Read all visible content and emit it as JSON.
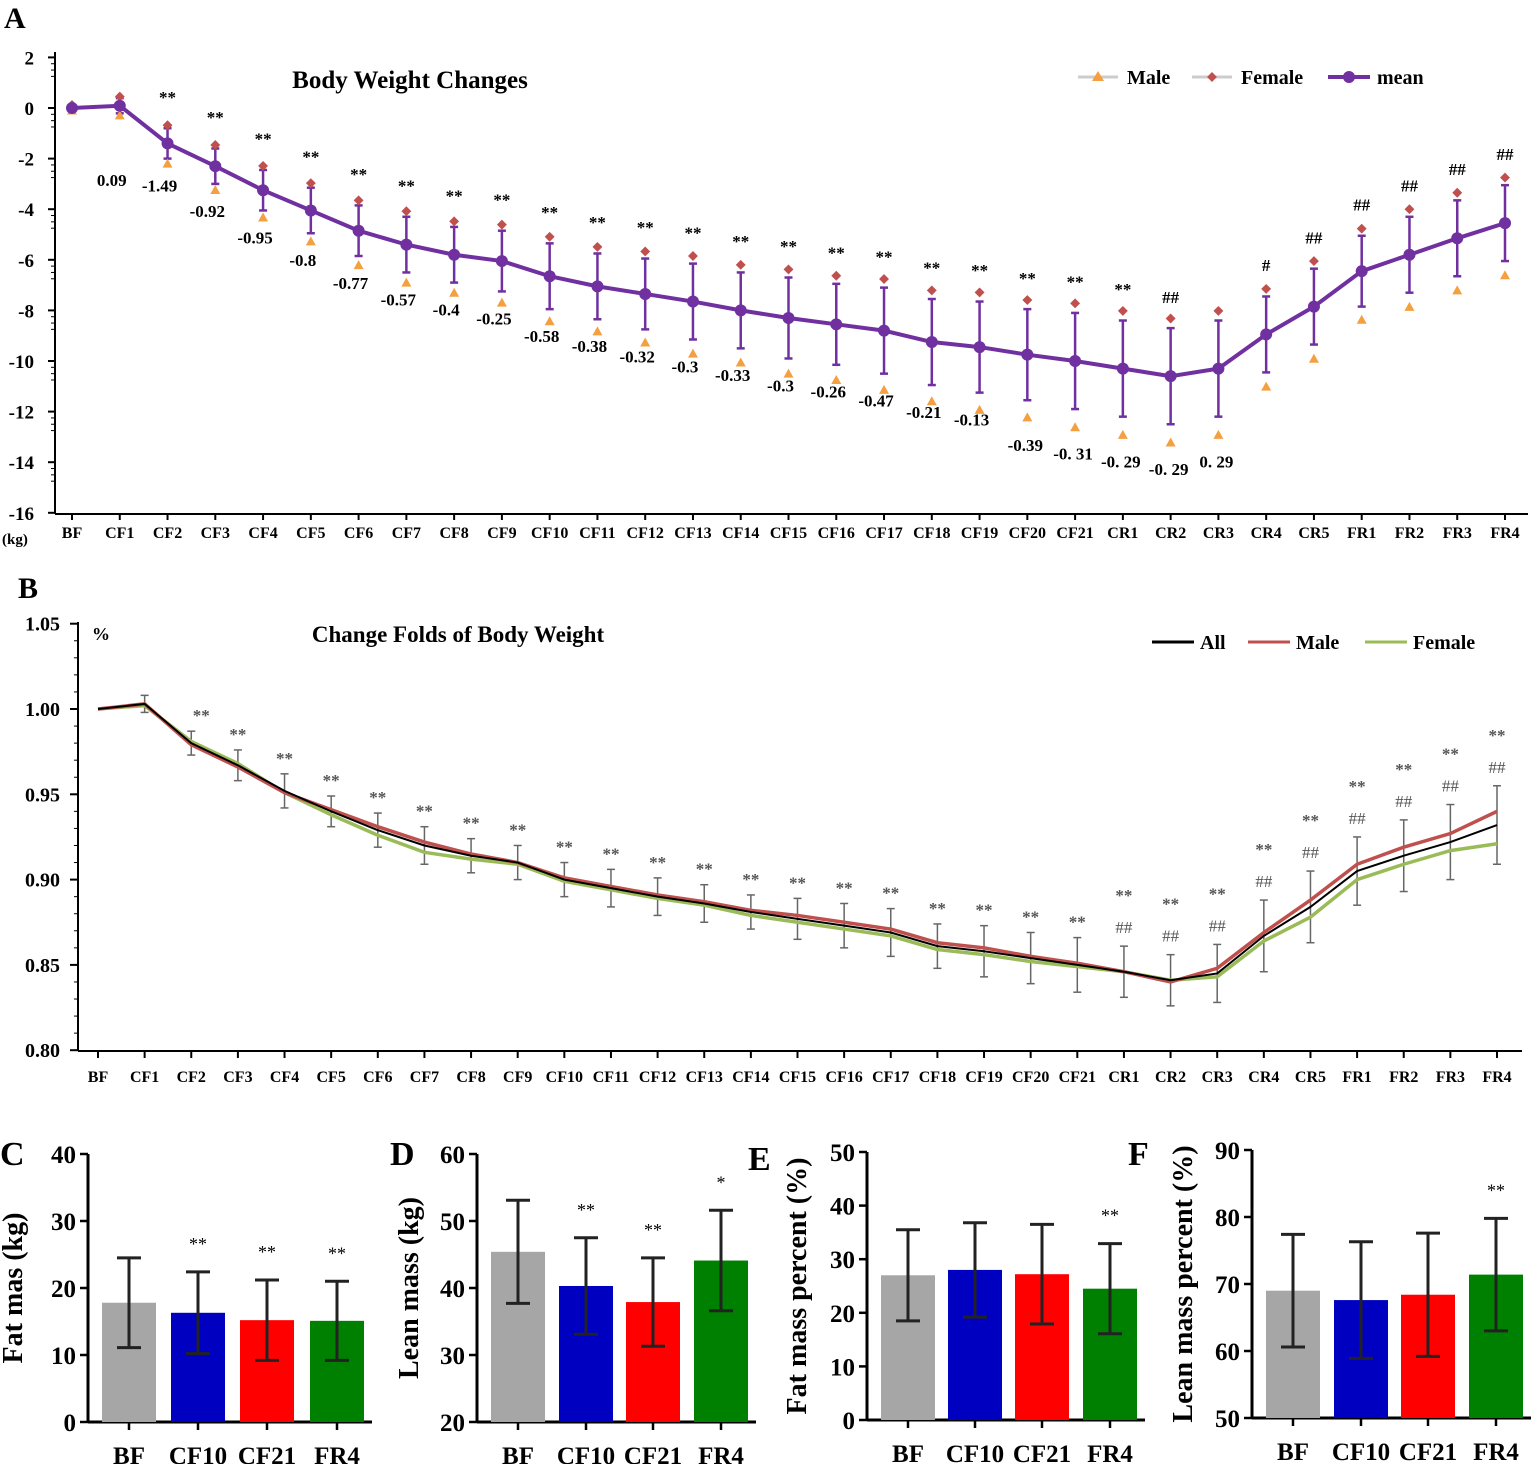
{
  "panel_labels": [
    "A",
    "B",
    "C",
    "D",
    "E",
    "F"
  ],
  "chart_data": [
    {
      "type": "line",
      "title": "Body Weight Changes",
      "ylabel": "(kg)",
      "ylim": [
        -16,
        2
      ],
      "yticks": [
        2,
        0,
        -2,
        -4,
        -6,
        -8,
        -10,
        -12,
        -14,
        -16
      ],
      "categories": [
        "BF",
        "CF1",
        "CF2",
        "CF3",
        "CF4",
        "CF5",
        "CF6",
        "CF7",
        "CF8",
        "CF9",
        "CF10",
        "CF11",
        "CF12",
        "CF13",
        "CF14",
        "CF15",
        "CF16",
        "CF17",
        "CF18",
        "CF19",
        "CF20",
        "CF21",
        "CR1",
        "CR2",
        "CR3",
        "CR4",
        "CR5",
        "FR1",
        "FR2",
        "FR3",
        "FR4"
      ],
      "legend": [
        "Male",
        "Female",
        "mean"
      ],
      "legend_position": "top-right",
      "series": [
        {
          "name": "mean",
          "color": "#7030a0",
          "values": [
            0,
            0.09,
            -1.4,
            -2.3,
            -3.25,
            -4.05,
            -4.85,
            -5.4,
            -5.8,
            -6.05,
            -6.65,
            -7.05,
            -7.35,
            -7.65,
            -8.0,
            -8.3,
            -8.55,
            -8.8,
            -9.25,
            -9.45,
            -9.75,
            -10.0,
            -10.3,
            -10.6,
            -10.3,
            -8.95,
            -7.85,
            -6.45,
            -5.8,
            -5.15,
            -4.55
          ],
          "sd": [
            0.1,
            0.3,
            0.6,
            0.7,
            0.8,
            0.9,
            1.0,
            1.1,
            1.1,
            1.2,
            1.3,
            1.3,
            1.4,
            1.5,
            1.5,
            1.6,
            1.6,
            1.7,
            1.7,
            1.8,
            1.8,
            1.9,
            1.9,
            1.9,
            1.9,
            1.5,
            1.5,
            1.4,
            1.5,
            1.5,
            1.5
          ]
        }
      ],
      "male_color": "#f4a040",
      "female_color": "#c0504d",
      "step_labels": [
        "",
        "0.09",
        "-1.49",
        "-0.92",
        "-0.95",
        "-0.8",
        "-0.77",
        "-0.57",
        "-0.4",
        "-0.25",
        "-0.58",
        "-0.38",
        "-0.32",
        "-0.3",
        "-0.33",
        "-0.3",
        "-0.26",
        "-0.47",
        "-0.21",
        "-0.13",
        "-0.39",
        "-0. 31",
        "-0. 29",
        "-0. 29",
        "0. 29",
        "",
        "",
        "",
        "",
        "",
        ""
      ],
      "significance": [
        "",
        "",
        "**",
        "**",
        "**",
        "**",
        "**",
        "**",
        "**",
        "**",
        "**",
        "**",
        "**",
        "**",
        "**",
        "**",
        "**",
        "**",
        "**",
        "**",
        "**",
        "**",
        "**",
        "##",
        "",
        "#",
        "##",
        "##",
        "##",
        "##",
        "##"
      ]
    },
    {
      "type": "line",
      "title": "Change Folds of Body Weight",
      "ylabel": "%",
      "ylim": [
        0.8,
        1.05
      ],
      "yticks": [
        "1.05",
        "1.00",
        "0.95",
        "0.90",
        "0.85",
        "0.80"
      ],
      "categories": [
        "BF",
        "CF1",
        "CF2",
        "CF3",
        "CF4",
        "CF5",
        "CF6",
        "CF7",
        "CF8",
        "CF9",
        "CF10",
        "CF11",
        "CF12",
        "CF13",
        "CF14",
        "CF15",
        "CF16",
        "CF17",
        "CF18",
        "CF19",
        "CF20",
        "CF21",
        "CR1",
        "CR2",
        "CR3",
        "CR4",
        "CR5",
        "FR1",
        "FR2",
        "FR3",
        "FR4"
      ],
      "legend": [
        "All",
        "Male",
        "Female"
      ],
      "legend_position": "top-right",
      "series": [
        {
          "name": "All",
          "color": "#000000",
          "values": [
            1.0,
            1.003,
            0.98,
            0.967,
            0.952,
            0.94,
            0.929,
            0.92,
            0.914,
            0.91,
            0.9,
            0.895,
            0.89,
            0.886,
            0.881,
            0.877,
            0.873,
            0.869,
            0.861,
            0.858,
            0.854,
            0.85,
            0.846,
            0.841,
            0.845,
            0.867,
            0.884,
            0.905,
            0.914,
            0.922,
            0.932
          ],
          "sd": [
            0,
            0.005,
            0.007,
            0.009,
            0.01,
            0.009,
            0.01,
            0.011,
            0.01,
            0.01,
            0.01,
            0.011,
            0.011,
            0.011,
            0.01,
            0.012,
            0.013,
            0.014,
            0.013,
            0.015,
            0.015,
            0.016,
            0.015,
            0.015,
            0.017,
            0.021,
            0.021,
            0.02,
            0.021,
            0.022,
            0.023
          ]
        },
        {
          "name": "Male",
          "color": "#c0504d",
          "values": [
            1.0,
            1.003,
            0.979,
            0.966,
            0.951,
            0.941,
            0.931,
            0.922,
            0.915,
            0.91,
            0.901,
            0.896,
            0.891,
            0.887,
            0.882,
            0.879,
            0.875,
            0.871,
            0.863,
            0.86,
            0.855,
            0.851,
            0.846,
            0.84,
            0.848,
            0.869,
            0.888,
            0.909,
            0.919,
            0.927,
            0.94
          ]
        },
        {
          "name": "Female",
          "color": "#9bbb59",
          "values": [
            1.0,
            1.002,
            0.981,
            0.968,
            0.951,
            0.938,
            0.926,
            0.916,
            0.912,
            0.909,
            0.899,
            0.894,
            0.889,
            0.885,
            0.879,
            0.875,
            0.871,
            0.867,
            0.859,
            0.856,
            0.852,
            0.849,
            0.846,
            0.841,
            0.843,
            0.864,
            0.878,
            0.9,
            0.909,
            0.917,
            0.921
          ]
        }
      ],
      "significance_top": [
        "",
        "",
        "**",
        "**",
        "**",
        "**",
        "**",
        "**",
        "**",
        "**",
        "**",
        "**",
        "**",
        "**",
        "**",
        "**",
        "**",
        "**",
        "**",
        "**",
        "**",
        "**",
        "**",
        "**",
        "**",
        "**",
        "**",
        "**",
        "**",
        "**",
        "**"
      ],
      "significance_hash": [
        "",
        "",
        "",
        "",
        "",
        "",
        "",
        "",
        "",
        "",
        "",
        "",
        "",
        "",
        "",
        "",
        "",
        "",
        "",
        "",
        "",
        "",
        "##",
        "##",
        "##",
        "##",
        "##",
        "##",
        "##",
        "##",
        "##"
      ]
    },
    {
      "type": "bar",
      "ylabel": "Fat mas (kg)",
      "ylim": [
        0,
        40
      ],
      "yticks": [
        "0",
        "10",
        "20",
        "30",
        "40"
      ],
      "categories": [
        "BF",
        "CF10",
        "CF21",
        "FR4"
      ],
      "values": [
        17.8,
        16.3,
        15.2,
        15.1
      ],
      "sd": [
        6.7,
        6.1,
        6.0,
        5.9
      ],
      "colors": [
        "#a6a6a6",
        "#0000c0",
        "#ff0000",
        "#008000"
      ],
      "significance": [
        "",
        "**",
        "**",
        "**"
      ]
    },
    {
      "type": "bar",
      "ylabel": "Lean mass (kg)",
      "ylim": [
        20,
        60
      ],
      "yticks": [
        "20",
        "30",
        "40",
        "50",
        "60"
      ],
      "categories": [
        "BF",
        "CF10",
        "CF21",
        "FR4"
      ],
      "values": [
        45.4,
        40.3,
        37.9,
        44.1
      ],
      "sd": [
        7.7,
        7.2,
        6.6,
        7.5
      ],
      "colors": [
        "#a6a6a6",
        "#0000c0",
        "#ff0000",
        "#008000"
      ],
      "significance": [
        "",
        "**",
        "**",
        "*"
      ]
    },
    {
      "type": "bar",
      "ylabel": "Fat mass percent (%)",
      "ylim": [
        0,
        50
      ],
      "yticks": [
        "0",
        "10",
        "20",
        "30",
        "40",
        "50"
      ],
      "categories": [
        "BF",
        "CF10",
        "CF21",
        "FR4"
      ],
      "values": [
        27.0,
        28.0,
        27.2,
        24.5
      ],
      "sd": [
        8.5,
        8.8,
        9.3,
        8.4
      ],
      "colors": [
        "#a6a6a6",
        "#0000c0",
        "#ff0000",
        "#008000"
      ],
      "significance": [
        "",
        "",
        "",
        "**"
      ]
    },
    {
      "type": "bar",
      "ylabel": "Lean mass percent (%)",
      "ylim": [
        50,
        90
      ],
      "yticks": [
        "50",
        "60",
        "70",
        "80",
        "90"
      ],
      "categories": [
        "BF",
        "CF10",
        "CF21",
        "FR4"
      ],
      "values": [
        69.0,
        67.6,
        68.4,
        71.4
      ],
      "sd": [
        8.4,
        8.7,
        9.2,
        8.4
      ],
      "colors": [
        "#a6a6a6",
        "#0000c0",
        "#ff0000",
        "#008000"
      ],
      "significance": [
        "",
        "",
        "",
        "**"
      ]
    }
  ]
}
